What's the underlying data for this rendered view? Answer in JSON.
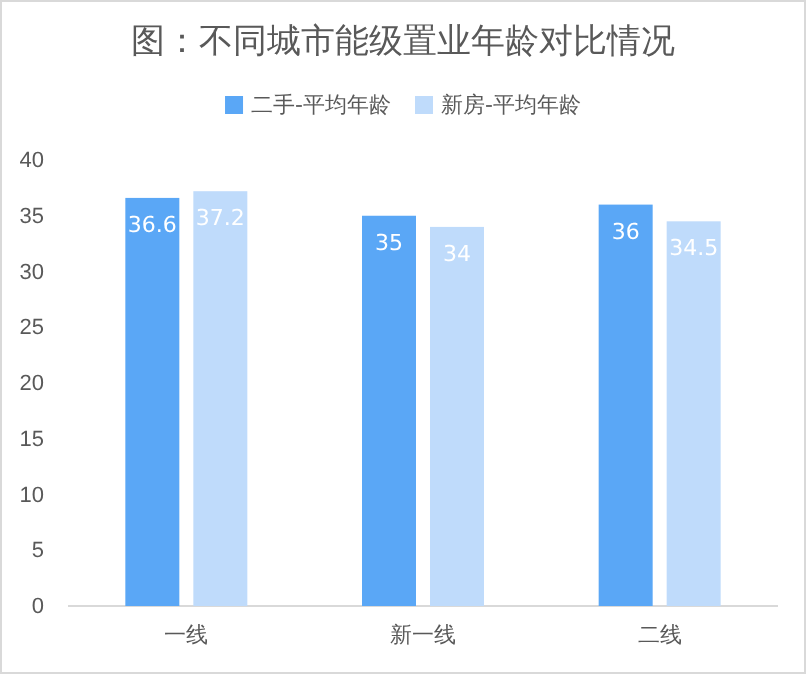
{
  "chart_data": {
    "type": "bar",
    "title": "图：不同城市能级置业年龄对比情况",
    "categories": [
      "一线",
      "新一线",
      "二线"
    ],
    "series": [
      {
        "name": "二手-平均年龄",
        "color": "#5aa7f6",
        "values": [
          36.6,
          35,
          36
        ]
      },
      {
        "name": "新房-平均年龄",
        "color": "#bfdbfb",
        "values": [
          37.2,
          34,
          34.5
        ]
      }
    ],
    "ylim": [
      0,
      40
    ],
    "yticks": [
      0,
      5,
      10,
      15,
      20,
      25,
      30,
      35,
      40
    ],
    "legend": "top",
    "data_labels": true
  }
}
